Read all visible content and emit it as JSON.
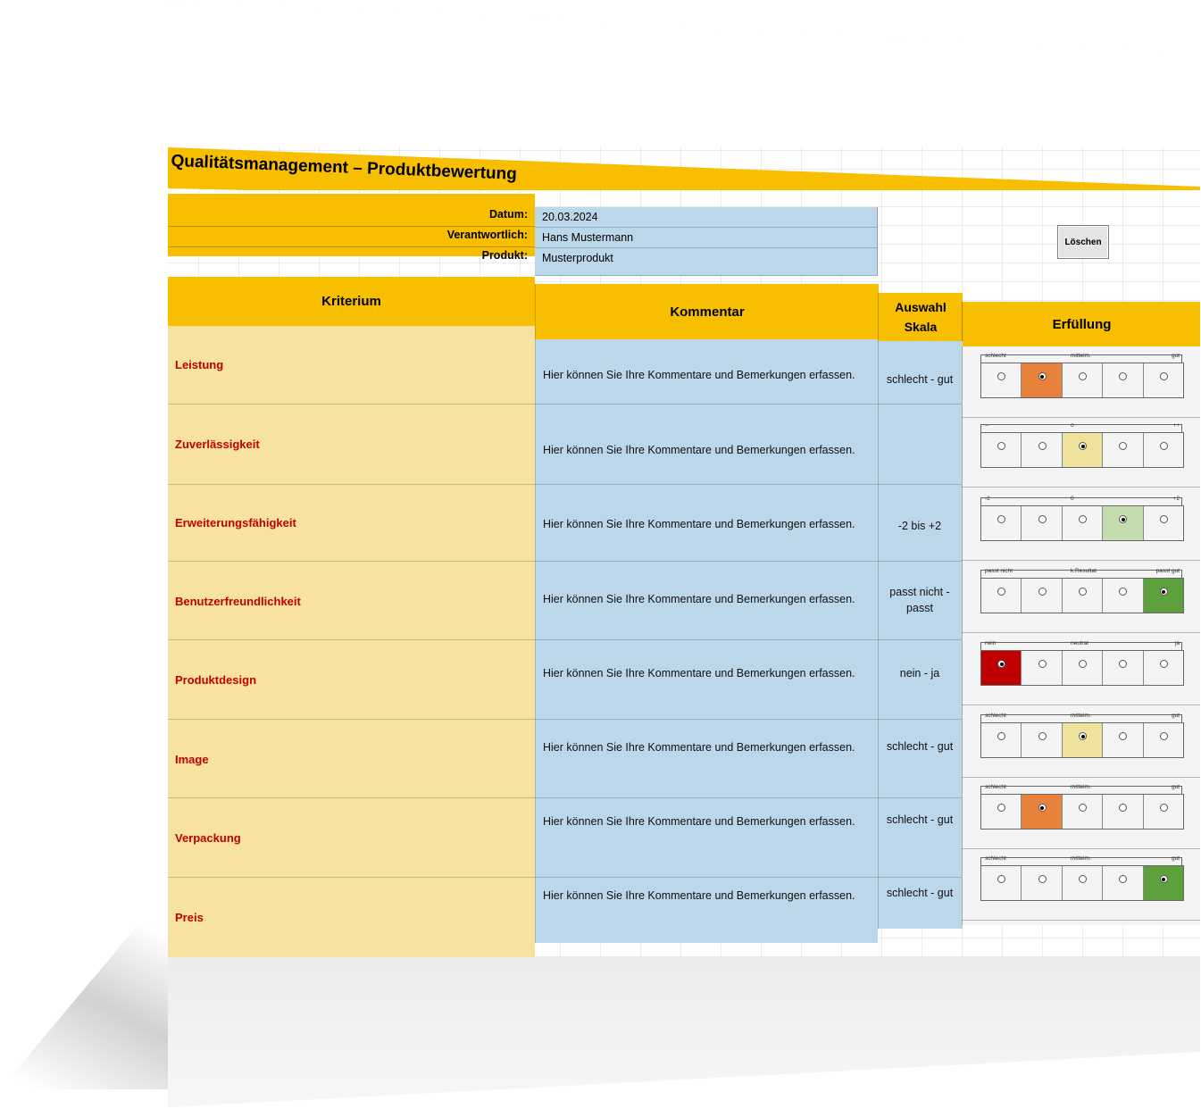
{
  "title": "Qualitätsmanagement – Produktbewertung",
  "info": {
    "datum_label": "Datum:",
    "datum_value": "20.03.2024",
    "verantwortlich_label": "Verantwortlich:",
    "verantwortlich_value": "Hans Mustermann",
    "produkt_label": "Produkt:",
    "produkt_value": "Musterprodukt"
  },
  "clear_button": "Löschen",
  "headers": {
    "kriterium": "Kriterium",
    "kommentar": "Kommentar",
    "auswahl_skala_line1": "Auswahl",
    "auswahl_skala_line2": "Skala",
    "erfuellung": "Erfüllung"
  },
  "colors": {
    "orange": "#e8813a",
    "yellow": "#efe29c",
    "light_green": "#c3dcae",
    "green": "#5ea03c",
    "red": "#c00000"
  },
  "rows": [
    {
      "kriterium": "Leistung",
      "kommentar": "Hier können Sie Ihre Kommentare und Bemerkungen erfassen.",
      "skala": "schlecht - gut",
      "scale_labels": [
        "schlecht",
        "",
        "mittelm.",
        "",
        "gut"
      ],
      "selected": 2,
      "color": "#e8813a"
    },
    {
      "kriterium": "Zuverlässigkeit",
      "kommentar": "Hier können Sie Ihre Kommentare und Bemerkungen erfassen.",
      "skala": "",
      "scale_labels": [
        "--",
        "",
        "o",
        "",
        "++"
      ],
      "selected": 3,
      "color": "#efe29c"
    },
    {
      "kriterium": "Erweiterungsfähigkeit",
      "kommentar": "Hier können Sie Ihre Kommentare und Bemerkungen erfassen.",
      "skala": "-2 bis +2",
      "scale_labels": [
        "-2",
        "",
        "0",
        "",
        "+2"
      ],
      "selected": 4,
      "color": "#c3dcae"
    },
    {
      "kriterium": "Benutzerfreundlichkeit",
      "kommentar": "Hier können Sie Ihre Kommentare und Bemerkungen erfassen.",
      "skala": "passt nicht - passt",
      "scale_labels": [
        "passt nicht",
        "",
        "k.Resultat",
        "",
        "passt gut"
      ],
      "selected": 5,
      "color": "#5ea03c"
    },
    {
      "kriterium": "Produktdesign",
      "kommentar": "Hier können Sie Ihre Kommentare und Bemerkungen erfassen.",
      "skala": "nein - ja",
      "scale_labels": [
        "nein",
        "",
        "neutral",
        "",
        "ja"
      ],
      "selected": 1,
      "color": "#c00000"
    },
    {
      "kriterium": "Image",
      "kommentar": "Hier können Sie Ihre Kommentare und Bemerkungen erfassen.",
      "skala": "schlecht - gut",
      "scale_labels": [
        "schlecht",
        "",
        "mittelm.",
        "",
        "gut"
      ],
      "selected": 3,
      "color": "#efe29c"
    },
    {
      "kriterium": "Verpackung",
      "kommentar": "Hier können Sie Ihre Kommentare und Bemerkungen erfassen.",
      "skala": "schlecht - gut",
      "scale_labels": [
        "schlecht",
        "",
        "mittelm.",
        "",
        "gut"
      ],
      "selected": 2,
      "color": "#e8813a"
    },
    {
      "kriterium": "Preis",
      "kommentar": "Hier können Sie Ihre Kommentare und Bemerkungen erfassen.",
      "skala": "schlecht - gut",
      "scale_labels": [
        "schlecht",
        "",
        "mittelm.",
        "",
        "gut"
      ],
      "selected": 5,
      "color": "#5ea03c"
    }
  ]
}
